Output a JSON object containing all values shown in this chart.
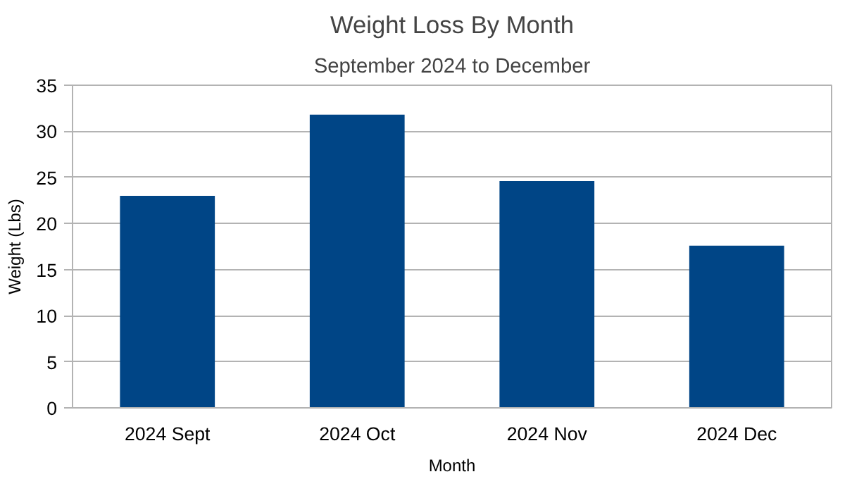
{
  "chart_data": {
    "type": "bar",
    "title": "Weight Loss By Month",
    "subtitle": "September 2024 to December",
    "xlabel": "Month",
    "ylabel": "Weight (Lbs)",
    "categories": [
      "2024 Sept",
      "2024 Oct",
      "2024 Nov",
      "2024 Dec"
    ],
    "values": [
      23,
      31.8,
      24.6,
      17.6
    ],
    "color": "#004586",
    "ylim": [
      0,
      35
    ],
    "yticks": [
      0,
      5,
      10,
      15,
      20,
      25,
      30,
      35
    ],
    "grid": "y"
  }
}
